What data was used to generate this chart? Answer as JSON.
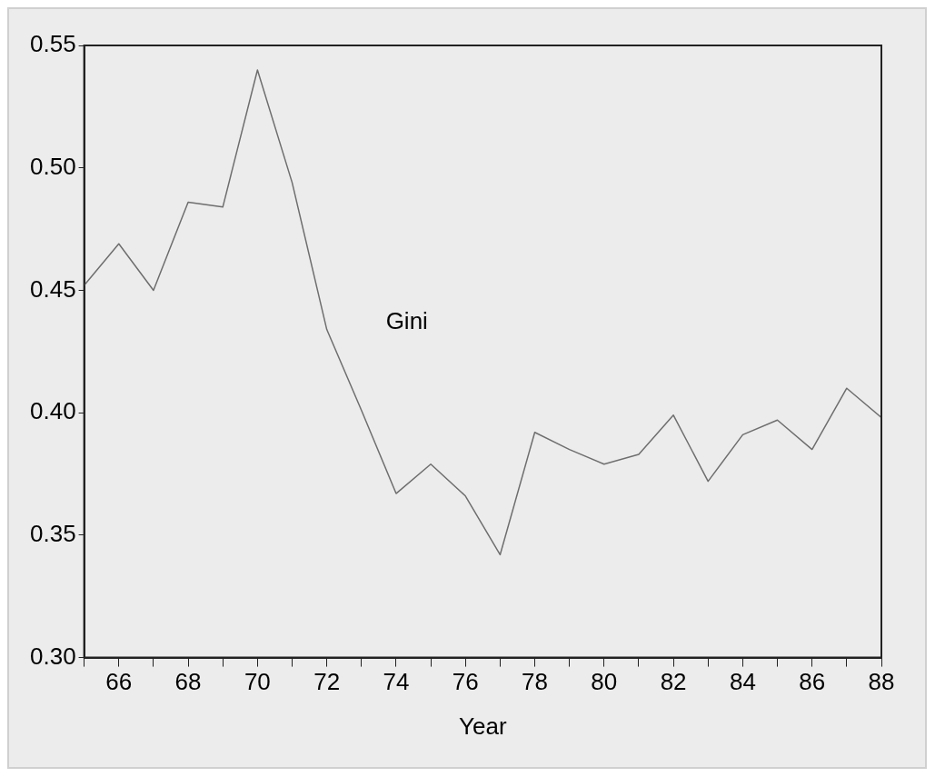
{
  "chart_data": {
    "type": "line",
    "xlabel": "Year",
    "x": [
      65,
      66,
      67,
      68,
      69,
      70,
      71,
      72,
      73,
      74,
      75,
      76,
      77,
      78,
      79,
      80,
      81,
      82,
      83,
      84,
      85,
      86,
      87,
      88
    ],
    "series": [
      {
        "name": "Gini",
        "color": "#6e6e6e",
        "values": [
          0.452,
          0.469,
          0.45,
          0.486,
          0.484,
          0.54,
          0.494,
          0.434,
          0.401,
          0.367,
          0.379,
          0.366,
          0.342,
          0.392,
          0.385,
          0.379,
          0.383,
          0.399,
          0.372,
          0.391,
          0.397,
          0.385,
          0.41,
          0.398
        ]
      }
    ],
    "xlim": [
      65,
      88
    ],
    "xticks": [
      {
        "value": 65,
        "label": null
      },
      {
        "value": 66,
        "label": "66"
      },
      {
        "value": 67,
        "label": null
      },
      {
        "value": 68,
        "label": "68"
      },
      {
        "value": 69,
        "label": null
      },
      {
        "value": 70,
        "label": "70"
      },
      {
        "value": 71,
        "label": null
      },
      {
        "value": 72,
        "label": "72"
      },
      {
        "value": 73,
        "label": null
      },
      {
        "value": 74,
        "label": "74"
      },
      {
        "value": 75,
        "label": null
      },
      {
        "value": 76,
        "label": "76"
      },
      {
        "value": 77,
        "label": null
      },
      {
        "value": 78,
        "label": "78"
      },
      {
        "value": 79,
        "label": null
      },
      {
        "value": 80,
        "label": "80"
      },
      {
        "value": 81,
        "label": null
      },
      {
        "value": 82,
        "label": "82"
      },
      {
        "value": 83,
        "label": null
      },
      {
        "value": 84,
        "label": "84"
      },
      {
        "value": 85,
        "label": null
      },
      {
        "value": 86,
        "label": "86"
      },
      {
        "value": 87,
        "label": null
      },
      {
        "value": 88,
        "label": "88"
      }
    ],
    "ylim": [
      0.3,
      0.55
    ],
    "yticks": [
      {
        "value": 0.3,
        "label": "0.30"
      },
      {
        "value": 0.35,
        "label": "0.35"
      },
      {
        "value": 0.4,
        "label": "0.40"
      },
      {
        "value": 0.45,
        "label": "0.45"
      },
      {
        "value": 0.5,
        "label": "0.50"
      },
      {
        "value": 0.55,
        "label": "0.55"
      }
    ],
    "grid": false,
    "legend": false,
    "marker": "none",
    "line_style": "solid"
  }
}
